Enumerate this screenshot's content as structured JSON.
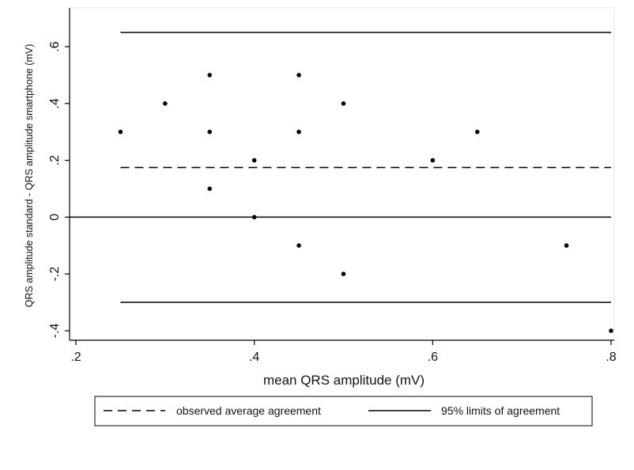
{
  "chart_data": {
    "type": "scatter",
    "title": "",
    "xlabel": "mean QRS amplitude (mV)",
    "ylabel": "QRS amplitude standard - QRS amplitude smartphone (mV)",
    "xlim": [
      0.2,
      0.8
    ],
    "ylim": [
      -0.4,
      0.6
    ],
    "x_ticks": [
      ".2",
      ".4",
      ".6",
      ".8"
    ],
    "y_ticks": [
      "-.4",
      "-.2",
      "0",
      ".2",
      ".4",
      ".6"
    ],
    "grid": false,
    "points": [
      {
        "x": 0.25,
        "y": 0.3
      },
      {
        "x": 0.3,
        "y": 0.4
      },
      {
        "x": 0.35,
        "y": 0.5
      },
      {
        "x": 0.35,
        "y": 0.3
      },
      {
        "x": 0.35,
        "y": 0.1
      },
      {
        "x": 0.4,
        "y": 0.2
      },
      {
        "x": 0.4,
        "y": 0.0
      },
      {
        "x": 0.45,
        "y": 0.5
      },
      {
        "x": 0.45,
        "y": 0.3
      },
      {
        "x": 0.45,
        "y": -0.1
      },
      {
        "x": 0.5,
        "y": 0.4
      },
      {
        "x": 0.5,
        "y": -0.2
      },
      {
        "x": 0.6,
        "y": 0.2
      },
      {
        "x": 0.65,
        "y": 0.3
      },
      {
        "x": 0.75,
        "y": -0.1
      },
      {
        "x": 0.8,
        "y": -0.4
      }
    ],
    "reference_lines": [
      {
        "name": "observed average agreement",
        "y": 0.175,
        "style": "dashed",
        "x_range": [
          0.25,
          0.8
        ]
      },
      {
        "name": "95% limits of agreement",
        "y": 0.65,
        "style": "solid",
        "x_range": [
          0.25,
          0.8
        ]
      },
      {
        "name": "95% limits of agreement",
        "y": -0.3,
        "style": "solid",
        "x_range": [
          0.25,
          0.8
        ]
      },
      {
        "name": "zero",
        "y": 0.0,
        "style": "solid",
        "x_range": [
          0.2,
          0.8
        ]
      }
    ],
    "legend": {
      "placement": "bottom",
      "items": [
        {
          "label": "observed average agreement",
          "style": "dashed"
        },
        {
          "label": "95% limits of agreement",
          "style": "solid"
        }
      ]
    }
  }
}
